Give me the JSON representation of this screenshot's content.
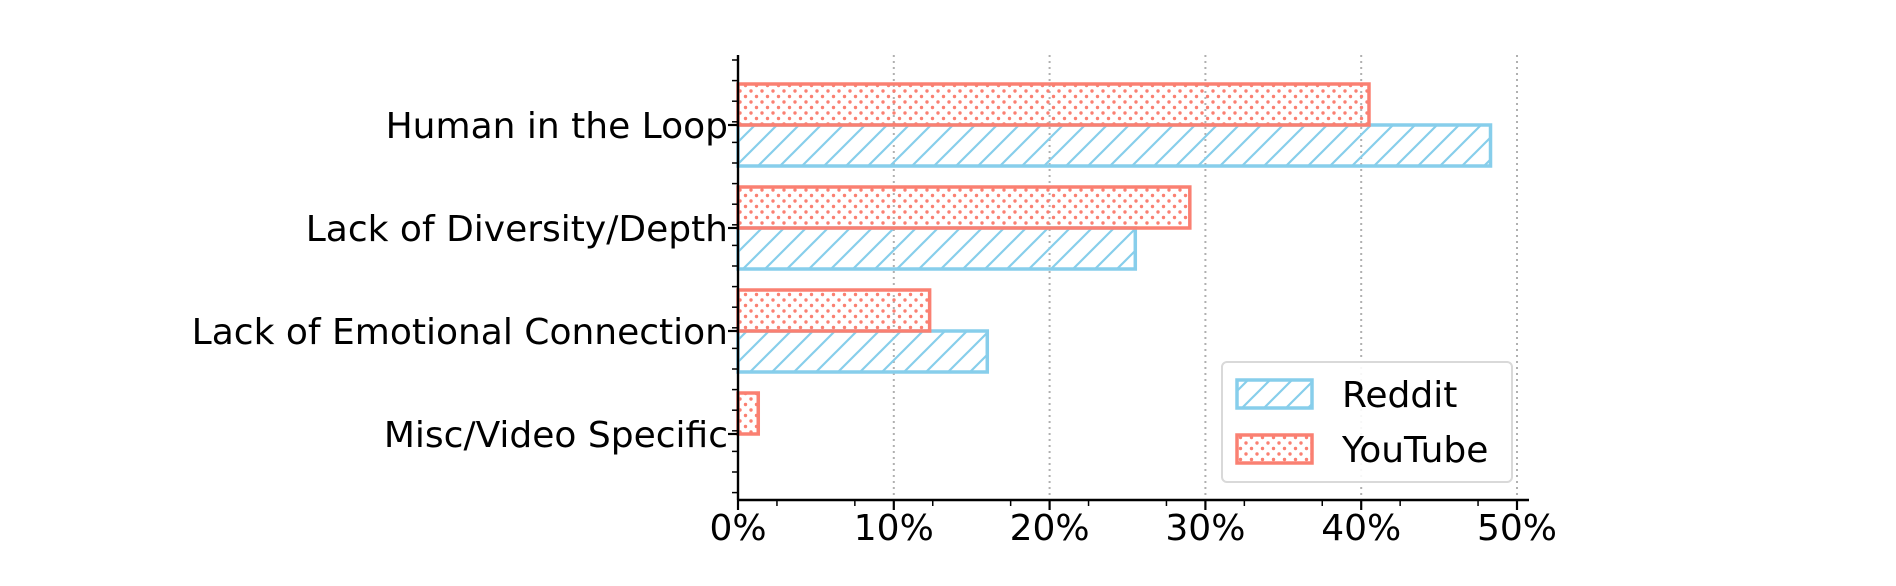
{
  "chart_data": {
    "type": "bar",
    "orientation": "horizontal",
    "categories": [
      "Human in the Loop",
      "Lack of Diversity/Depth",
      "Lack of Emotional Connection",
      "Misc/Video Specific"
    ],
    "series": [
      {
        "name": "Reddit",
        "values": [
          48.3,
          25.5,
          16.0,
          0.0
        ],
        "color": "#87CEEB",
        "pattern": "hatch"
      },
      {
        "name": "YouTube",
        "values": [
          40.5,
          29.0,
          12.3,
          1.3
        ],
        "color": "#FA8072",
        "pattern": "dots"
      }
    ],
    "xlim": [
      0,
      50
    ],
    "xticks": [
      "0%",
      "10%",
      "20%",
      "30%",
      "40%",
      "50%"
    ],
    "title": "",
    "xlabel": "",
    "ylabel": "",
    "grid": "x-dotted",
    "legend": "bottom-right"
  }
}
